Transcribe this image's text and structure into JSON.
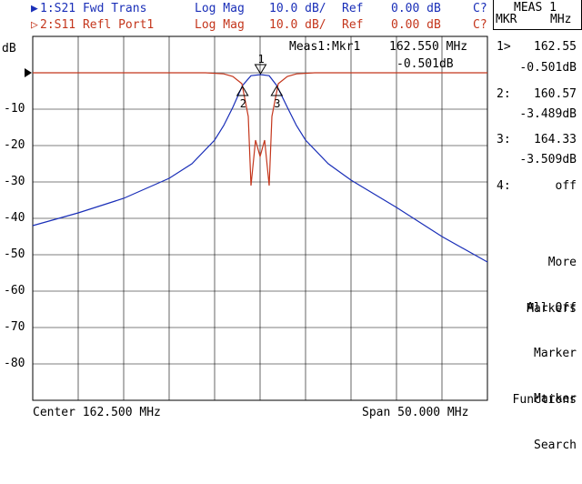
{
  "traces": [
    {
      "id": "1:S21 Fwd Trans",
      "format": "Log Mag",
      "scale": "10.0 dB/",
      "ref_label": "Ref",
      "ref_value": "0.00 dB",
      "cal": "C?",
      "color": "#1a2fb8"
    },
    {
      "id": "2:S11 Refl Port1",
      "format": "Log Mag",
      "scale": "10.0 dB/",
      "ref_label": "Ref",
      "ref_value": "0.00 dB",
      "cal": "C?",
      "color": "#c4361c"
    }
  ],
  "trace_markers": [
    "▶",
    "▷"
  ],
  "y_unit": "dB",
  "y_ticks": [
    "-10",
    "-20",
    "-30",
    "-40",
    "-50",
    "-60",
    "-70",
    "-80"
  ],
  "active_marker": {
    "label": "Meas1:Mkr1",
    "freq": "162.550 MHz",
    "value": "-0.501dB"
  },
  "footer": {
    "center": "Center 162.500 MHz",
    "span": "Span 50.000 MHz"
  },
  "meas_box": {
    "title": "MEAS 1",
    "left": "MKR",
    "right": "MHz"
  },
  "markers": [
    {
      "num": "1>",
      "freq": "162.55",
      "value": "-0.501dB"
    },
    {
      "num": "2:",
      "freq": "160.57",
      "value": "-3.489dB"
    },
    {
      "num": "3:",
      "freq": "164.33",
      "value": "-3.509dB"
    },
    {
      "num": "4:",
      "freq": "off",
      "value": ""
    }
  ],
  "marker_flags": [
    "1",
    "2",
    "3"
  ],
  "softkeys": [
    {
      "line1": "More",
      "line2": "Markers"
    },
    {
      "line1": "All Off",
      "line2": ""
    },
    {
      "line1": "Marker",
      "line2": "Functions"
    },
    {
      "line1": "Marker",
      "line2": "Search"
    }
  ],
  "chart_data": {
    "type": "line",
    "xlabel": "",
    "ylabel": "dB",
    "xlim": [
      137.5,
      187.5
    ],
    "ylim": [
      -90,
      10
    ],
    "grid": true,
    "series": [
      {
        "name": "1:S21 Fwd Trans",
        "color": "#1a2fb8",
        "x": [
          137.5,
          142.5,
          147.5,
          152.5,
          155,
          157.5,
          158.5,
          159.5,
          160.57,
          161.5,
          162.55,
          163.5,
          164.33,
          165.5,
          166.5,
          167.5,
          170,
          172.5,
          177.5,
          182.5,
          187.5
        ],
        "y": [
          -42.0,
          -38.5,
          -34.5,
          -29.0,
          -25.0,
          -18.5,
          -14.5,
          -9.5,
          -3.5,
          -0.8,
          -0.5,
          -0.8,
          -3.5,
          -9.5,
          -14.5,
          -18.5,
          -25.0,
          -29.5,
          -37.0,
          -45.0,
          -52.0
        ]
      },
      {
        "name": "2:S11 Refl Port1",
        "color": "#c4361c",
        "x": [
          137.5,
          156.5,
          158.5,
          159.5,
          160.5,
          161.2,
          161.5,
          162.0,
          162.5,
          163.0,
          163.5,
          163.8,
          164.5,
          165.5,
          166.5,
          168.5,
          187.5
        ],
        "y": [
          0,
          0,
          -0.3,
          -1.0,
          -3.0,
          -12.0,
          -31.0,
          -18.5,
          -23.0,
          -18.5,
          -31.0,
          -12.0,
          -3.0,
          -1.0,
          -0.3,
          0,
          0
        ]
      }
    ]
  }
}
